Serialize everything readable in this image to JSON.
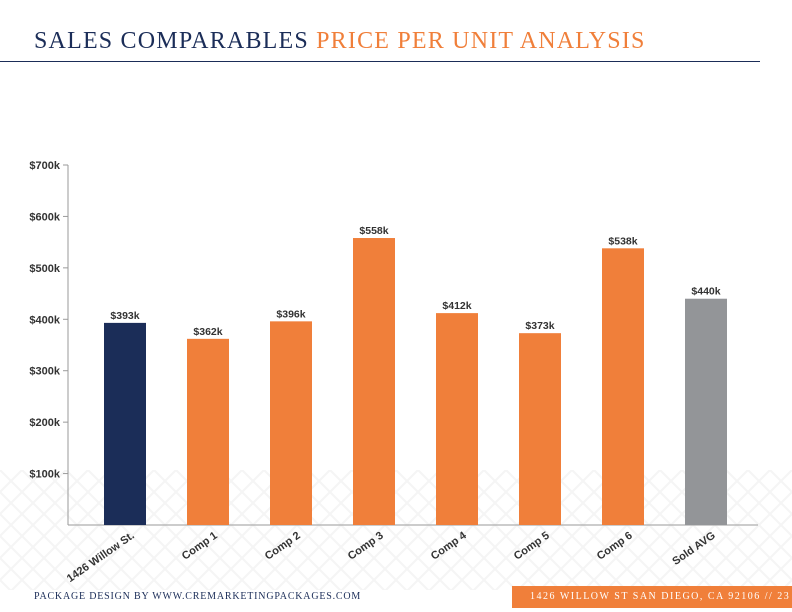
{
  "header": {
    "title_part1": "SALES COMPARABLES",
    "title_part2": "PRICE PER UNIT ANALYSIS"
  },
  "footer": {
    "left": "PACKAGE DESIGN BY WWW.CREMARKETINGPACKAGES.COM",
    "right": "1426 WILLOW ST SAN DIEGO, CA 92106 // 23"
  },
  "colors": {
    "navy": "#1b2d58",
    "orange": "#f07f3a",
    "gray": "#939598"
  },
  "chart_data": {
    "type": "bar",
    "categories": [
      "1426 Willow St.",
      "Comp 1",
      "Comp 2",
      "Comp 3",
      "Comp 4",
      "Comp 5",
      "Comp 6",
      "Sold AVG"
    ],
    "values": [
      393,
      362,
      396,
      558,
      412,
      373,
      538,
      440
    ],
    "value_labels": [
      "$393k",
      "$362k",
      "$396k",
      "$558k",
      "$412k",
      "$373k",
      "$538k",
      "$440k"
    ],
    "bar_colors": [
      "#1b2d58",
      "#f07f3a",
      "#f07f3a",
      "#f07f3a",
      "#f07f3a",
      "#f07f3a",
      "#f07f3a",
      "#939598"
    ],
    "y_ticks": [
      100,
      200,
      300,
      400,
      500,
      600,
      700
    ],
    "y_tick_labels": [
      "$100k",
      "$200k",
      "$300k",
      "$400k",
      "$500k",
      "$600k",
      "$700k"
    ],
    "ylim": [
      0,
      700
    ],
    "grid": false
  }
}
